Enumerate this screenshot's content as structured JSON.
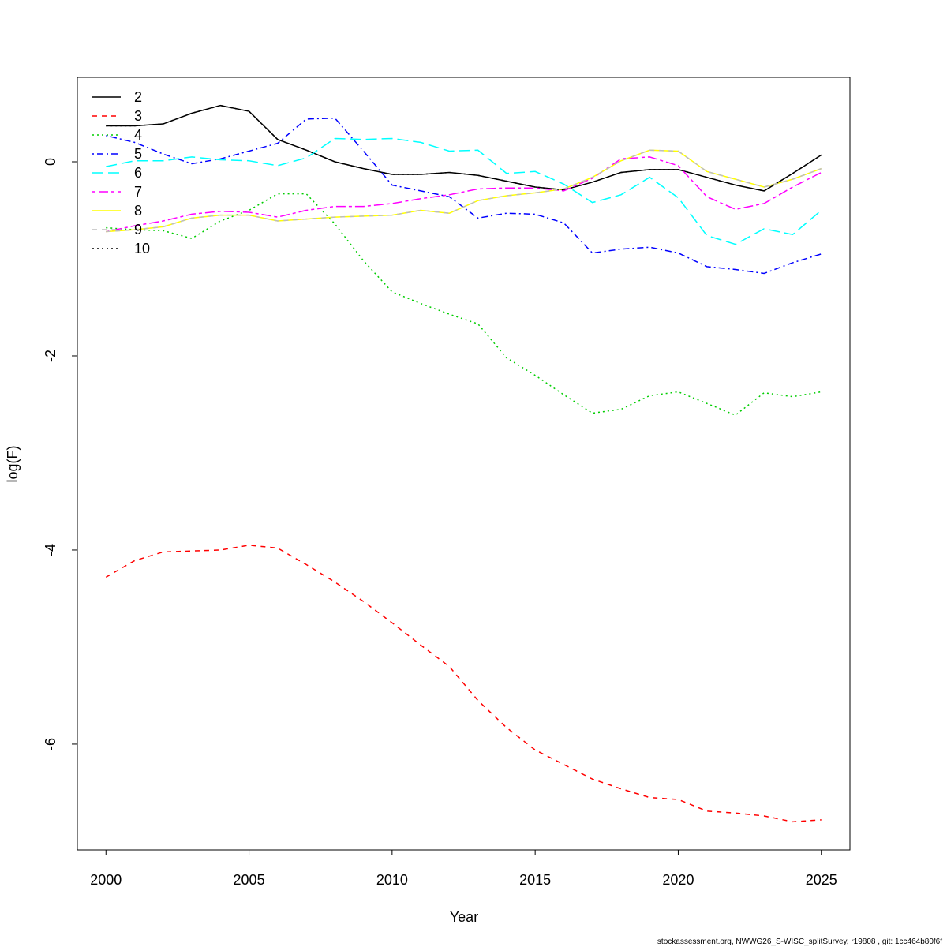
{
  "chart_data": {
    "type": "line",
    "xlabel": "Year",
    "ylabel": "log(F)",
    "footnote": "stockassessment.org, NWWG26_S-WISC_splitSurvey, r19808 , git: 1cc464b80f6f",
    "legend": "topleft",
    "x": [
      2000,
      2001,
      2002,
      2003,
      2004,
      2005,
      2006,
      2007,
      2008,
      2009,
      2010,
      2011,
      2012,
      2013,
      2014,
      2015,
      2016,
      2017,
      2018,
      2019,
      2020,
      2021,
      2022,
      2023,
      2024,
      2025
    ],
    "xlim": [
      1999,
      2026
    ],
    "xticks": [
      2000,
      2005,
      2010,
      2015,
      2020,
      2025
    ],
    "ylim": [
      -7.09,
      0.87
    ],
    "yticks": [
      -6,
      -4,
      -2,
      0
    ],
    "series": [
      {
        "name": "2",
        "color": "#000000",
        "linestyle": "solid",
        "values": [
          0.37,
          0.37,
          0.39,
          0.5,
          0.58,
          0.52,
          0.23,
          0.12,
          0.0,
          -0.07,
          -0.13,
          -0.13,
          -0.11,
          -0.14,
          -0.2,
          -0.26,
          -0.29,
          -0.21,
          -0.11,
          -0.08,
          -0.08,
          -0.16,
          -0.24,
          -0.3,
          -0.12,
          0.07
        ]
      },
      {
        "name": "3",
        "color": "#ff0000",
        "linestyle": "dashed",
        "values": [
          -4.28,
          -4.11,
          -4.02,
          -4.01,
          -4.0,
          -3.95,
          -3.98,
          -4.15,
          -4.33,
          -4.53,
          -4.75,
          -4.98,
          -5.2,
          -5.55,
          -5.83,
          -6.06,
          -6.21,
          -6.36,
          -6.46,
          -6.55,
          -6.57,
          -6.69,
          -6.71,
          -6.74,
          -6.8,
          -6.78
        ]
      },
      {
        "name": "4",
        "color": "#00cd00",
        "linestyle": "dotted",
        "values": [
          -0.68,
          -0.7,
          -0.71,
          -0.79,
          -0.61,
          -0.5,
          -0.33,
          -0.33,
          -0.64,
          -1.02,
          -1.34,
          -1.46,
          -1.57,
          -1.67,
          -2.02,
          -2.2,
          -2.4,
          -2.59,
          -2.55,
          -2.41,
          -2.37,
          -2.49,
          -2.61,
          -2.38,
          -2.42,
          -2.37
        ]
      },
      {
        "name": "5",
        "color": "#0000ff",
        "linestyle": "dotdash",
        "values": [
          0.27,
          0.2,
          0.08,
          -0.02,
          0.03,
          0.11,
          0.19,
          0.44,
          0.45,
          0.11,
          -0.24,
          -0.3,
          -0.36,
          -0.58,
          -0.53,
          -0.54,
          -0.63,
          -0.94,
          -0.9,
          -0.88,
          -0.94,
          -1.08,
          -1.11,
          -1.15,
          -1.04,
          -0.95
        ]
      },
      {
        "name": "6",
        "color": "#00ffff",
        "linestyle": "longdash",
        "values": [
          -0.05,
          0.01,
          0.01,
          0.05,
          0.02,
          0.01,
          -0.04,
          0.04,
          0.24,
          0.23,
          0.24,
          0.2,
          0.11,
          0.12,
          -0.12,
          -0.1,
          -0.23,
          -0.42,
          -0.34,
          -0.16,
          -0.37,
          -0.76,
          -0.85,
          -0.69,
          -0.75,
          -0.5
        ]
      },
      {
        "name": "7",
        "color": "#ff00ff",
        "linestyle": "twodash",
        "values": [
          -0.72,
          -0.66,
          -0.61,
          -0.54,
          -0.51,
          -0.52,
          -0.57,
          -0.5,
          -0.46,
          -0.46,
          -0.43,
          -0.38,
          -0.34,
          -0.28,
          -0.27,
          -0.27,
          -0.3,
          -0.17,
          0.03,
          0.05,
          -0.04,
          -0.36,
          -0.49,
          -0.43,
          -0.26,
          -0.11
        ]
      },
      {
        "name": "8",
        "color": "#ffff00",
        "linestyle": "solid",
        "values": [
          -0.72,
          -0.7,
          -0.67,
          -0.58,
          -0.55,
          -0.55,
          -0.61,
          -0.59,
          -0.57,
          -0.56,
          -0.55,
          -0.5,
          -0.53,
          -0.4,
          -0.35,
          -0.32,
          -0.28,
          -0.16,
          0.01,
          0.12,
          0.11,
          -0.1,
          -0.18,
          -0.26,
          -0.18,
          -0.07
        ]
      },
      {
        "name": "9",
        "color": "#bebebe",
        "linestyle": "dashed",
        "values": [
          -0.72,
          -0.7,
          -0.67,
          -0.58,
          -0.55,
          -0.55,
          -0.61,
          -0.59,
          -0.57,
          -0.56,
          -0.55,
          -0.5,
          -0.53,
          -0.4,
          -0.35,
          -0.32,
          -0.28,
          -0.16,
          0.01,
          0.12,
          0.11,
          -0.1,
          -0.18,
          -0.26,
          -0.18,
          -0.07
        ]
      },
      {
        "name": "10",
        "color": "#000000",
        "linestyle": "dotted",
        "values": [
          0.37,
          0.37,
          0.39,
          0.5,
          0.58,
          0.52,
          0.23,
          0.12,
          0.0,
          -0.07,
          -0.13,
          -0.13,
          -0.11,
          -0.14,
          -0.2,
          -0.26,
          -0.29,
          -0.21,
          -0.11,
          -0.08,
          -0.08,
          -0.16,
          -0.24,
          -0.3,
          -0.12,
          0.07
        ]
      }
    ]
  }
}
